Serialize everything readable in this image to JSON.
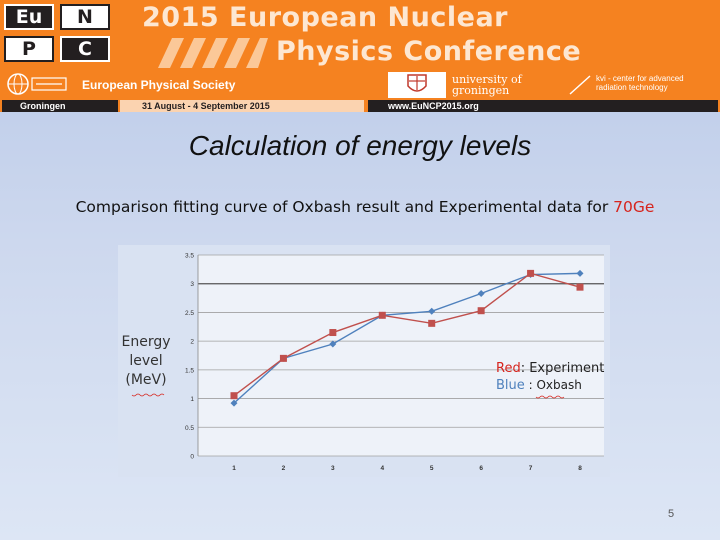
{
  "header": {
    "logo_letters": [
      "Eu",
      "N",
      "P",
      "C"
    ],
    "title_line1": "2015 European Nuclear",
    "title_line2": "Physics Conference",
    "eps_name": "European Physical Society",
    "university_line1": "university of",
    "university_line2": "groningen",
    "kvi_line1": "kvi - center for advanced",
    "kvi_line2": "radiation technology",
    "city": "Groningen",
    "dates": "31 August - 4 September 2015",
    "website": "www.EuNCP2015.org",
    "colors": {
      "brand_orange": "#f58220",
      "dark": "#231f20"
    }
  },
  "slide": {
    "title": "Calculation of energy levels",
    "subtitle_main": "Comparison fitting curve of Oxbash result and Experimental data for ",
    "subtitle_isotope": "70Ge",
    "page_number": "5"
  },
  "chart_data": {
    "type": "line",
    "title": "",
    "xlabel": "",
    "ylabel_lines": [
      "Energy",
      "level",
      "(MeV)"
    ],
    "x": [
      1,
      2,
      3,
      4,
      5,
      6,
      7,
      8
    ],
    "x_tick_labels": [
      "1",
      "2",
      "3",
      "4",
      "5",
      "6",
      "7",
      "8"
    ],
    "y_tick_labels": [
      "0",
      "0.5",
      "1",
      "1.5",
      "2",
      "2.5",
      "3",
      "3.5"
    ],
    "ylim": [
      0,
      3.5
    ],
    "grid": true,
    "highlight_gridline_y": 3,
    "series": [
      {
        "name": "Oxbash",
        "color": "#4f81bd",
        "marker": "diamond",
        "values": [
          0.92,
          1.7,
          1.95,
          2.45,
          2.52,
          2.83,
          3.16,
          3.18
        ]
      },
      {
        "name": "Experiment",
        "color": "#c0504d",
        "marker": "square",
        "values": [
          1.05,
          1.7,
          2.15,
          2.45,
          2.31,
          2.53,
          3.18,
          2.94
        ]
      }
    ],
    "legend": [
      {
        "color_word": "Red",
        "color": "#d6241d",
        "label": ": Experiment"
      },
      {
        "color_word": "Blue",
        "color": "#4f81bd",
        "label": ": Oxbash"
      }
    ]
  }
}
